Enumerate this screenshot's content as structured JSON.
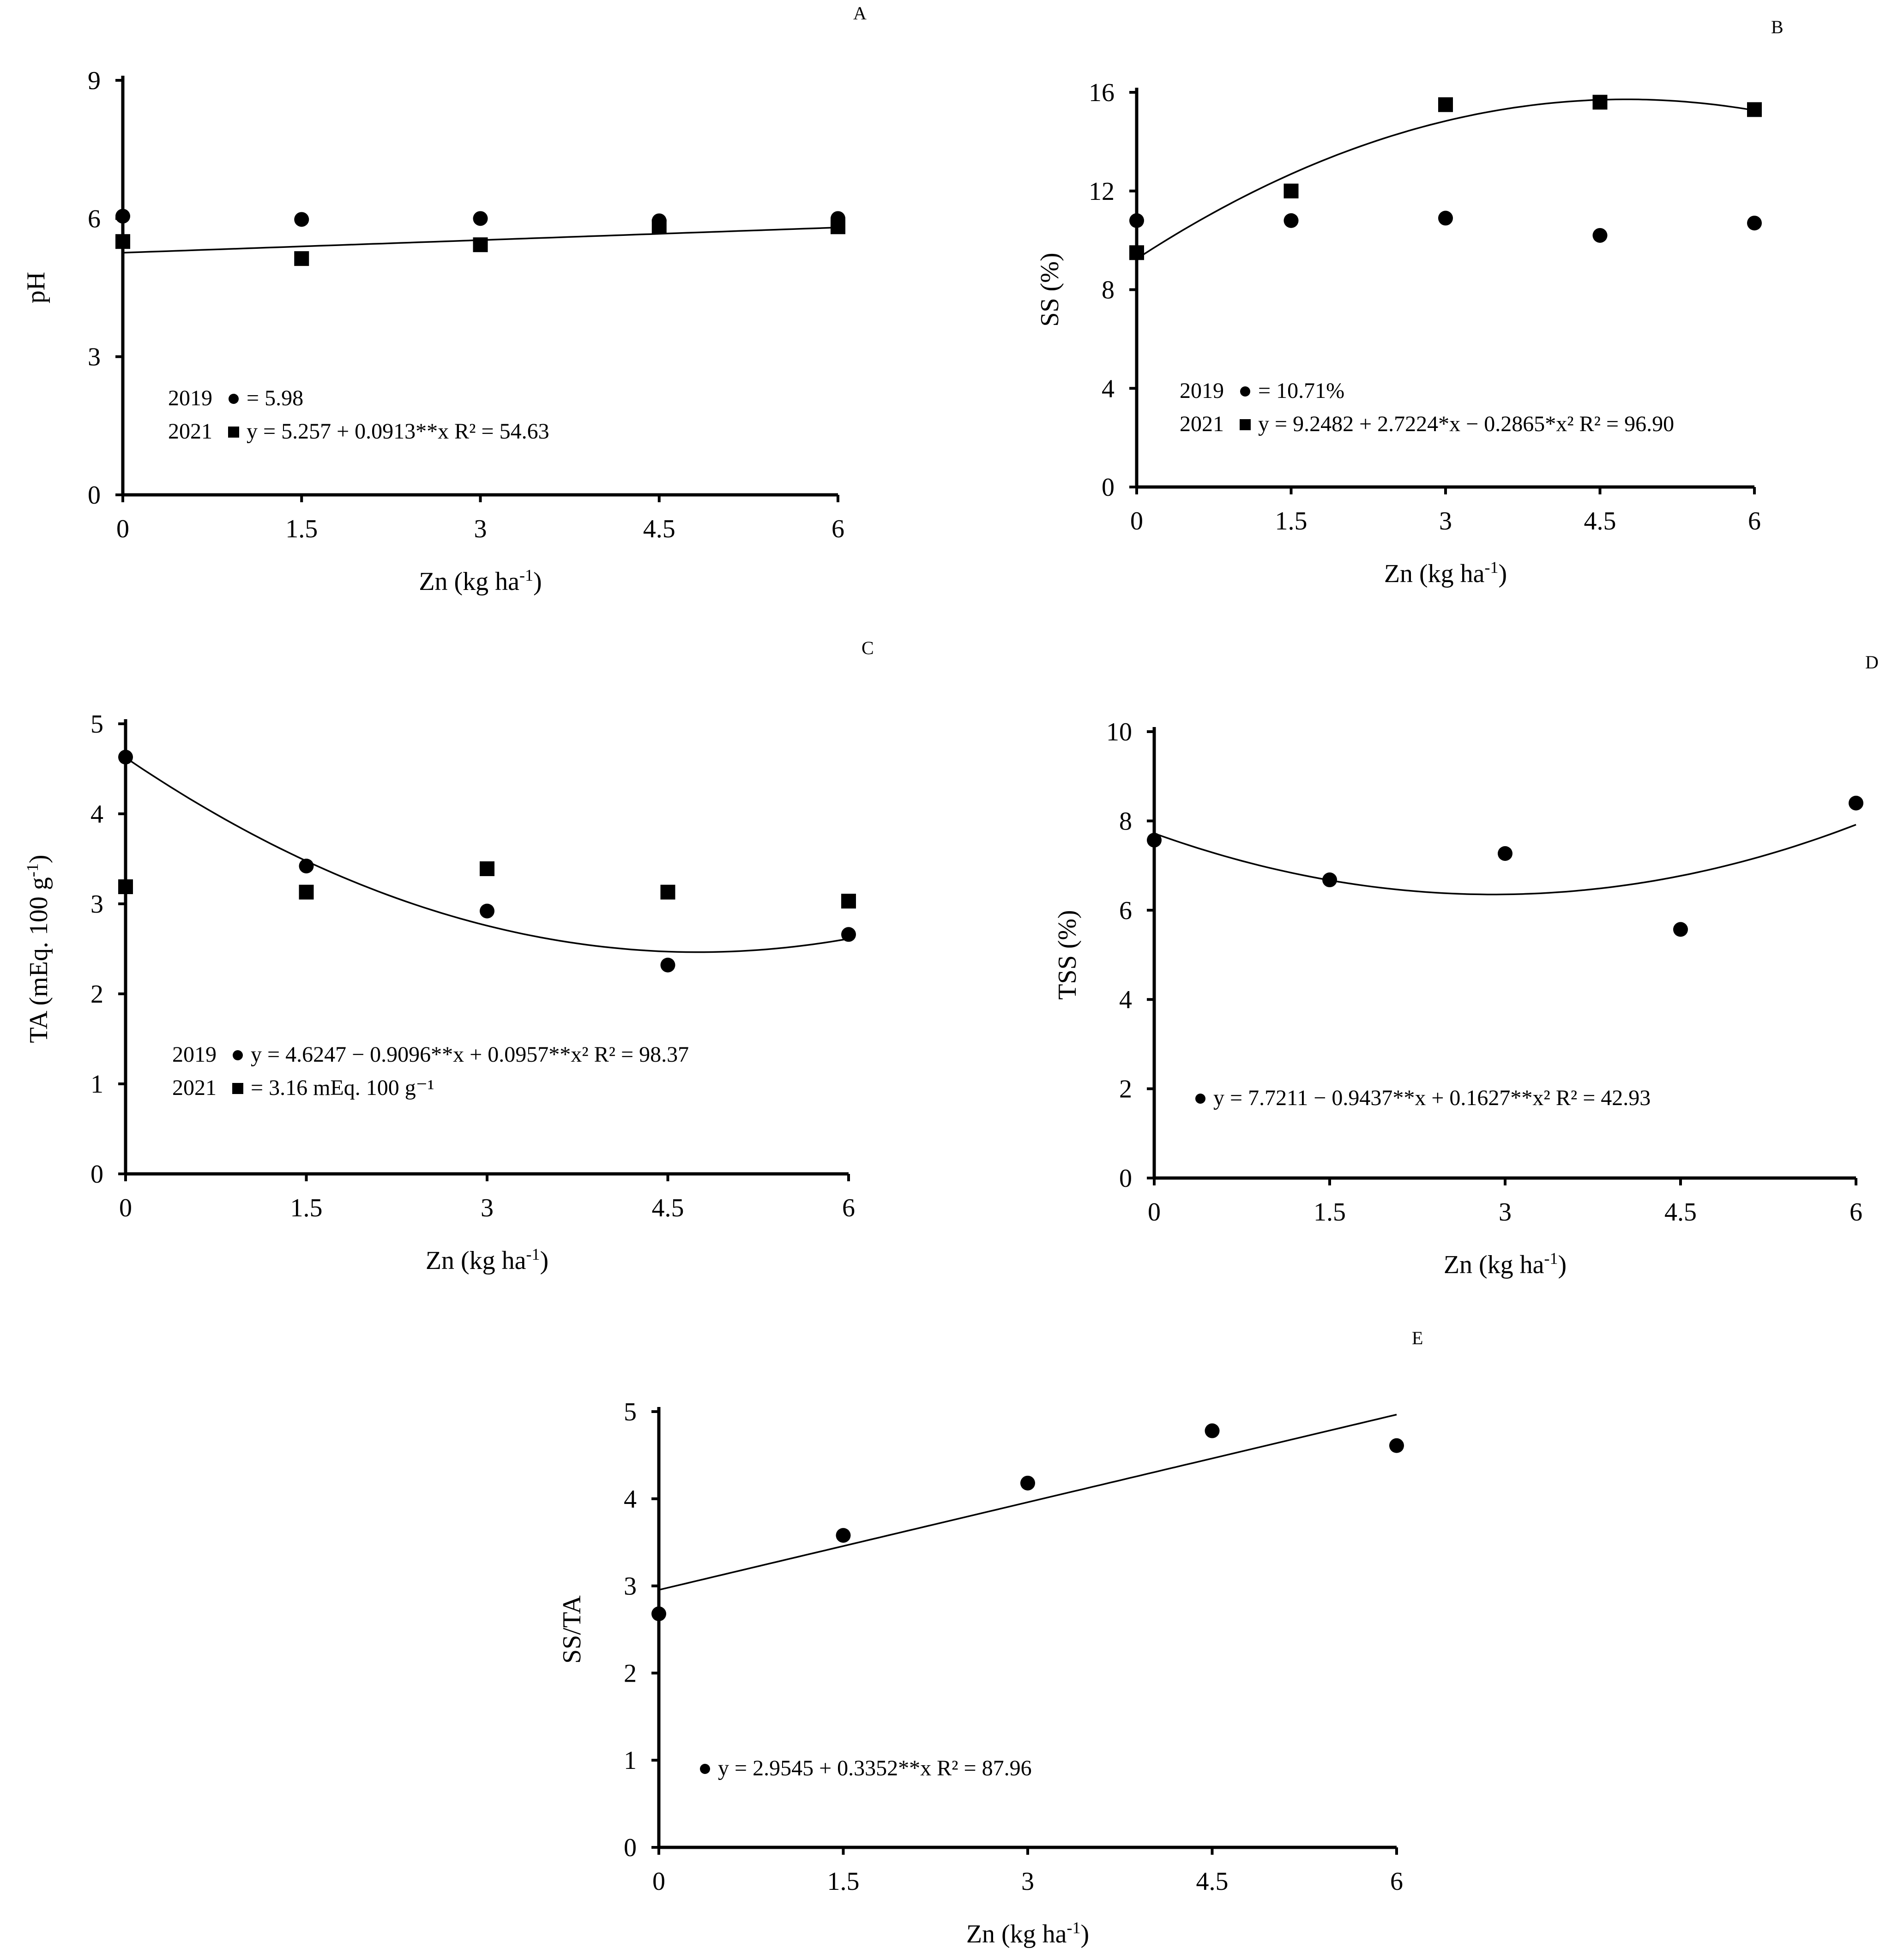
{
  "chart_data": [
    {
      "id": "A",
      "type": "scatter",
      "panel_label": "A",
      "ylabel": "pH",
      "xlabel": "Zn (kg ha",
      "xlabel_sup": "-1",
      "xlabel_end": ")",
      "ylim": [
        0,
        9
      ],
      "yticks": [
        0,
        3,
        6,
        9
      ],
      "xlim": [
        0,
        6
      ],
      "xticks": [
        0,
        1.5,
        3,
        4.5,
        6
      ],
      "xtick_labels": [
        "0",
        "1.5",
        "3",
        "4.5",
        "6"
      ],
      "series": [
        {
          "name": "2019",
          "marker": "circle",
          "x": [
            0,
            1.5,
            3,
            4.5,
            6
          ],
          "y": [
            6.05,
            5.98,
            6.0,
            5.95,
            6.0
          ]
        },
        {
          "name": "2021",
          "marker": "square",
          "x": [
            0,
            1.5,
            3,
            4.5,
            6
          ],
          "y": [
            5.5,
            5.13,
            5.43,
            5.82,
            5.82
          ]
        }
      ],
      "fits": [
        {
          "series": "2021",
          "coeffs": [
            5.257,
            0.0913,
            0
          ],
          "x_range": [
            0,
            6
          ]
        }
      ],
      "legend": [
        {
          "year": "2019",
          "marker": "circle",
          "text": "= 5.98"
        },
        {
          "year": "2021",
          "marker": "square",
          "text": "y = 5.257 + 0.0913**x R² = 54.63"
        }
      ]
    },
    {
      "id": "B",
      "type": "scatter",
      "panel_label": "B",
      "ylabel": "SS (%)",
      "xlabel": "Zn (kg ha",
      "xlabel_sup": "-1",
      "xlabel_end": ")",
      "ylim": [
        0,
        16
      ],
      "yticks": [
        0,
        4,
        8,
        12,
        16
      ],
      "xlim": [
        0,
        6
      ],
      "xticks": [
        0,
        1.5,
        3,
        4.5,
        6
      ],
      "xtick_labels": [
        "0",
        "1.5",
        "3",
        "4.5",
        "6"
      ],
      "series": [
        {
          "name": "2019",
          "marker": "circle",
          "x": [
            0,
            1.5,
            3,
            4.5,
            6
          ],
          "y": [
            10.8,
            10.8,
            10.9,
            10.2,
            10.7
          ]
        },
        {
          "name": "2021",
          "marker": "square",
          "x": [
            0,
            1.5,
            3,
            4.5,
            6
          ],
          "y": [
            9.5,
            12.0,
            15.5,
            15.6,
            15.3
          ]
        }
      ],
      "fits": [
        {
          "series": "2021",
          "coeffs": [
            9.2482,
            2.7224,
            -0.2865
          ],
          "x_range": [
            0,
            6
          ]
        }
      ],
      "legend": [
        {
          "year": "2019",
          "marker": "circle",
          "text": "= 10.71%"
        },
        {
          "year": "2021",
          "marker": "square",
          "text": "y = 9.2482 + 2.7224*x − 0.2865*x² R² = 96.90"
        }
      ]
    },
    {
      "id": "C",
      "type": "scatter",
      "panel_label": "C",
      "ylabel": "TA (mEq. 100 g",
      "ylabel_sup": "-1",
      "ylabel_end": ")",
      "xlabel": "Zn (kg ha",
      "xlabel_sup": "-1",
      "xlabel_end": ")",
      "ylim": [
        0,
        5
      ],
      "yticks": [
        0,
        1,
        2,
        3,
        4,
        5
      ],
      "xlim": [
        0,
        6
      ],
      "xticks": [
        0,
        1.5,
        3,
        4.5,
        6
      ],
      "xtick_labels": [
        "0",
        "1.5",
        "3",
        "4.5",
        "6"
      ],
      "series": [
        {
          "name": "2019",
          "marker": "circle",
          "x": [
            0,
            1.5,
            3,
            4.5,
            6
          ],
          "y": [
            4.63,
            3.42,
            2.92,
            2.32,
            2.66
          ]
        },
        {
          "name": "2021",
          "marker": "square",
          "x": [
            0,
            1.5,
            3,
            4.5,
            6
          ],
          "y": [
            3.19,
            3.13,
            3.39,
            3.13,
            3.03
          ]
        }
      ],
      "fits": [
        {
          "series": "2019",
          "coeffs": [
            4.6247,
            -0.9096,
            0.0957
          ],
          "x_range": [
            0,
            6
          ]
        }
      ],
      "legend": [
        {
          "year": "2019",
          "marker": "circle",
          "text": "y = 4.6247 − 0.9096**x + 0.0957**x² R² = 98.37"
        },
        {
          "year": "2021",
          "marker": "square",
          "text": "=  3.16 mEq. 100 g⁻¹"
        }
      ]
    },
    {
      "id": "D",
      "type": "scatter",
      "panel_label": "D",
      "ylabel": "TSS (%)",
      "xlabel": "Zn (kg ha",
      "xlabel_sup": "-1",
      "xlabel_end": ")",
      "ylim": [
        0,
        10
      ],
      "yticks": [
        0,
        2,
        4,
        6,
        8,
        10
      ],
      "xlim": [
        0,
        6
      ],
      "xticks": [
        0,
        1.5,
        3,
        4.5,
        6
      ],
      "xtick_labels": [
        "0",
        "1.5",
        "3",
        "4.5",
        "6"
      ],
      "series": [
        {
          "name": "",
          "marker": "circle",
          "x": [
            0,
            1.5,
            3,
            4.5,
            6
          ],
          "y": [
            7.57,
            6.68,
            7.27,
            5.57,
            8.4
          ]
        }
      ],
      "fits": [
        {
          "series": "",
          "coeffs": [
            7.7211,
            -0.9437,
            0.1627
          ],
          "x_range": [
            0,
            6
          ]
        }
      ],
      "legend": [
        {
          "year": "",
          "marker": "circle",
          "text": "y = 7.7211 − 0.9437**x + 0.1627**x² R² = 42.93"
        }
      ]
    },
    {
      "id": "E",
      "type": "scatter",
      "panel_label": "E",
      "ylabel": "SS/TA",
      "xlabel": "Zn (kg ha",
      "xlabel_sup": "-1",
      "xlabel_end": ")",
      "ylim": [
        0,
        5
      ],
      "yticks": [
        0,
        1,
        2,
        3,
        4,
        5
      ],
      "xlim": [
        0,
        6
      ],
      "xticks": [
        0,
        1.5,
        3,
        4.5,
        6
      ],
      "xtick_labels": [
        "0",
        "1.5",
        "3",
        "4.5",
        "6"
      ],
      "series": [
        {
          "name": "",
          "marker": "circle",
          "x": [
            0,
            1.5,
            3,
            4.5,
            6
          ],
          "y": [
            2.68,
            3.58,
            4.18,
            4.78,
            4.61
          ]
        }
      ],
      "fits": [
        {
          "series": "",
          "coeffs": [
            2.9545,
            0.3352,
            0
          ],
          "x_range": [
            0,
            6
          ]
        }
      ],
      "legend": [
        {
          "year": "",
          "marker": "circle",
          "text": "y = 2.9545 + 0.3352**x R² = 87.96"
        }
      ]
    }
  ]
}
